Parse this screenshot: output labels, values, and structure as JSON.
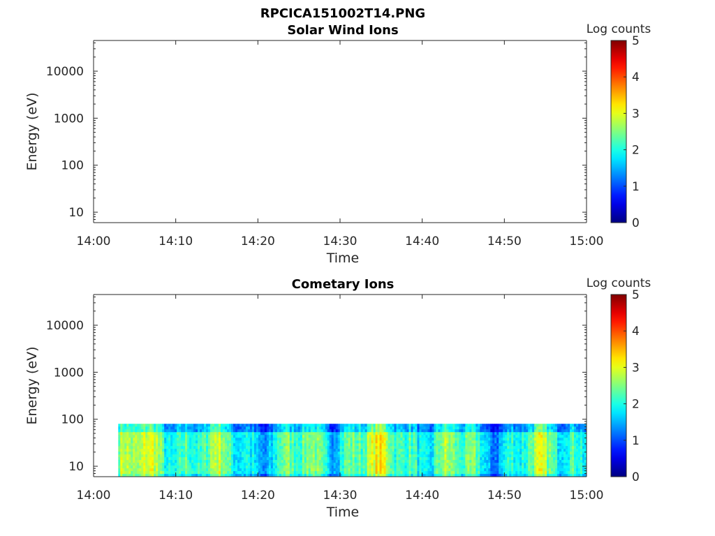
{
  "figure_title": "RPCICA151002T14.PNG",
  "chart_data": [
    {
      "type": "heatmap",
      "title": "Solar Wind Ions",
      "xlabel": "Time",
      "ylabel": "Energy (eV)",
      "x_ticks": [
        "14:00",
        "14:10",
        "14:20",
        "14:30",
        "14:40",
        "14:50",
        "15:00"
      ],
      "x_range": [
        "14:00",
        "15:00"
      ],
      "y_scale": "log",
      "y_ticks": [
        "10",
        "100",
        "1000",
        "10000"
      ],
      "y_range": [
        6,
        45000
      ],
      "colorbar": {
        "label": "Log counts",
        "ticks": [
          "0",
          "1",
          "2",
          "3",
          "4",
          "5"
        ],
        "range": [
          0,
          5
        ],
        "colormap": "jet"
      },
      "data": "empty"
    },
    {
      "type": "heatmap",
      "title": "Cometary Ions",
      "xlabel": "Time",
      "ylabel": "Energy (eV)",
      "x_ticks": [
        "14:00",
        "14:10",
        "14:20",
        "14:30",
        "14:40",
        "14:50",
        "15:00"
      ],
      "x_range": [
        "14:00",
        "15:00"
      ],
      "y_scale": "log",
      "y_ticks": [
        "10",
        "100",
        "1000",
        "10000"
      ],
      "y_range": [
        6,
        45000
      ],
      "colorbar": {
        "label": "Log counts",
        "ticks": [
          "0",
          "1",
          "2",
          "3",
          "4",
          "5"
        ],
        "range": [
          0,
          5
        ],
        "colormap": "jet"
      },
      "data": {
        "time_start": "14:03",
        "time_end": "15:00",
        "energy_min": 6,
        "energy_max": 80,
        "log_counts_range": [
          0.5,
          3.5
        ],
        "typical_log_counts": 2.2
      }
    }
  ]
}
